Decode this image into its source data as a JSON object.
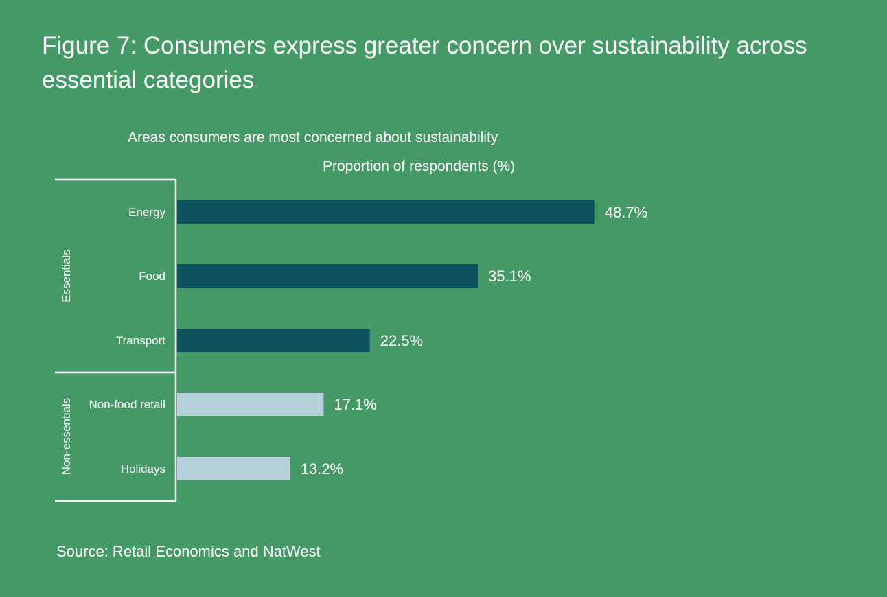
{
  "figure_title": "Figure 7: Consumers express greater concern over sustainability across essential categories",
  "source": "Source: Retail Economics and NatWest",
  "colors": {
    "background": "#459966",
    "essentials_bar": "#0e525f",
    "non_essentials_bar": "#b7d1db",
    "text": "#ffffff"
  },
  "chart_data": {
    "type": "bar",
    "orientation": "horizontal",
    "title": "Areas consumers are most concerned about sustainability",
    "xlabel": "Proportion of respondents (%)",
    "ylabel": "",
    "categories": [
      "Energy",
      "Food",
      "Transport",
      "Non-food retail",
      "Holidays"
    ],
    "values": [
      48.7,
      35.1,
      22.5,
      17.1,
      13.2
    ],
    "value_labels": [
      "48.7%",
      "35.1%",
      "22.5%",
      "17.1%",
      "13.2%"
    ],
    "groups": [
      {
        "name": "Essentials",
        "categories": [
          "Energy",
          "Food",
          "Transport"
        ]
      },
      {
        "name": "Non-essentials",
        "categories": [
          "Non-food retail",
          "Holidays"
        ]
      }
    ],
    "xlim": [
      0,
      50
    ],
    "grid": false,
    "legend": "none"
  }
}
